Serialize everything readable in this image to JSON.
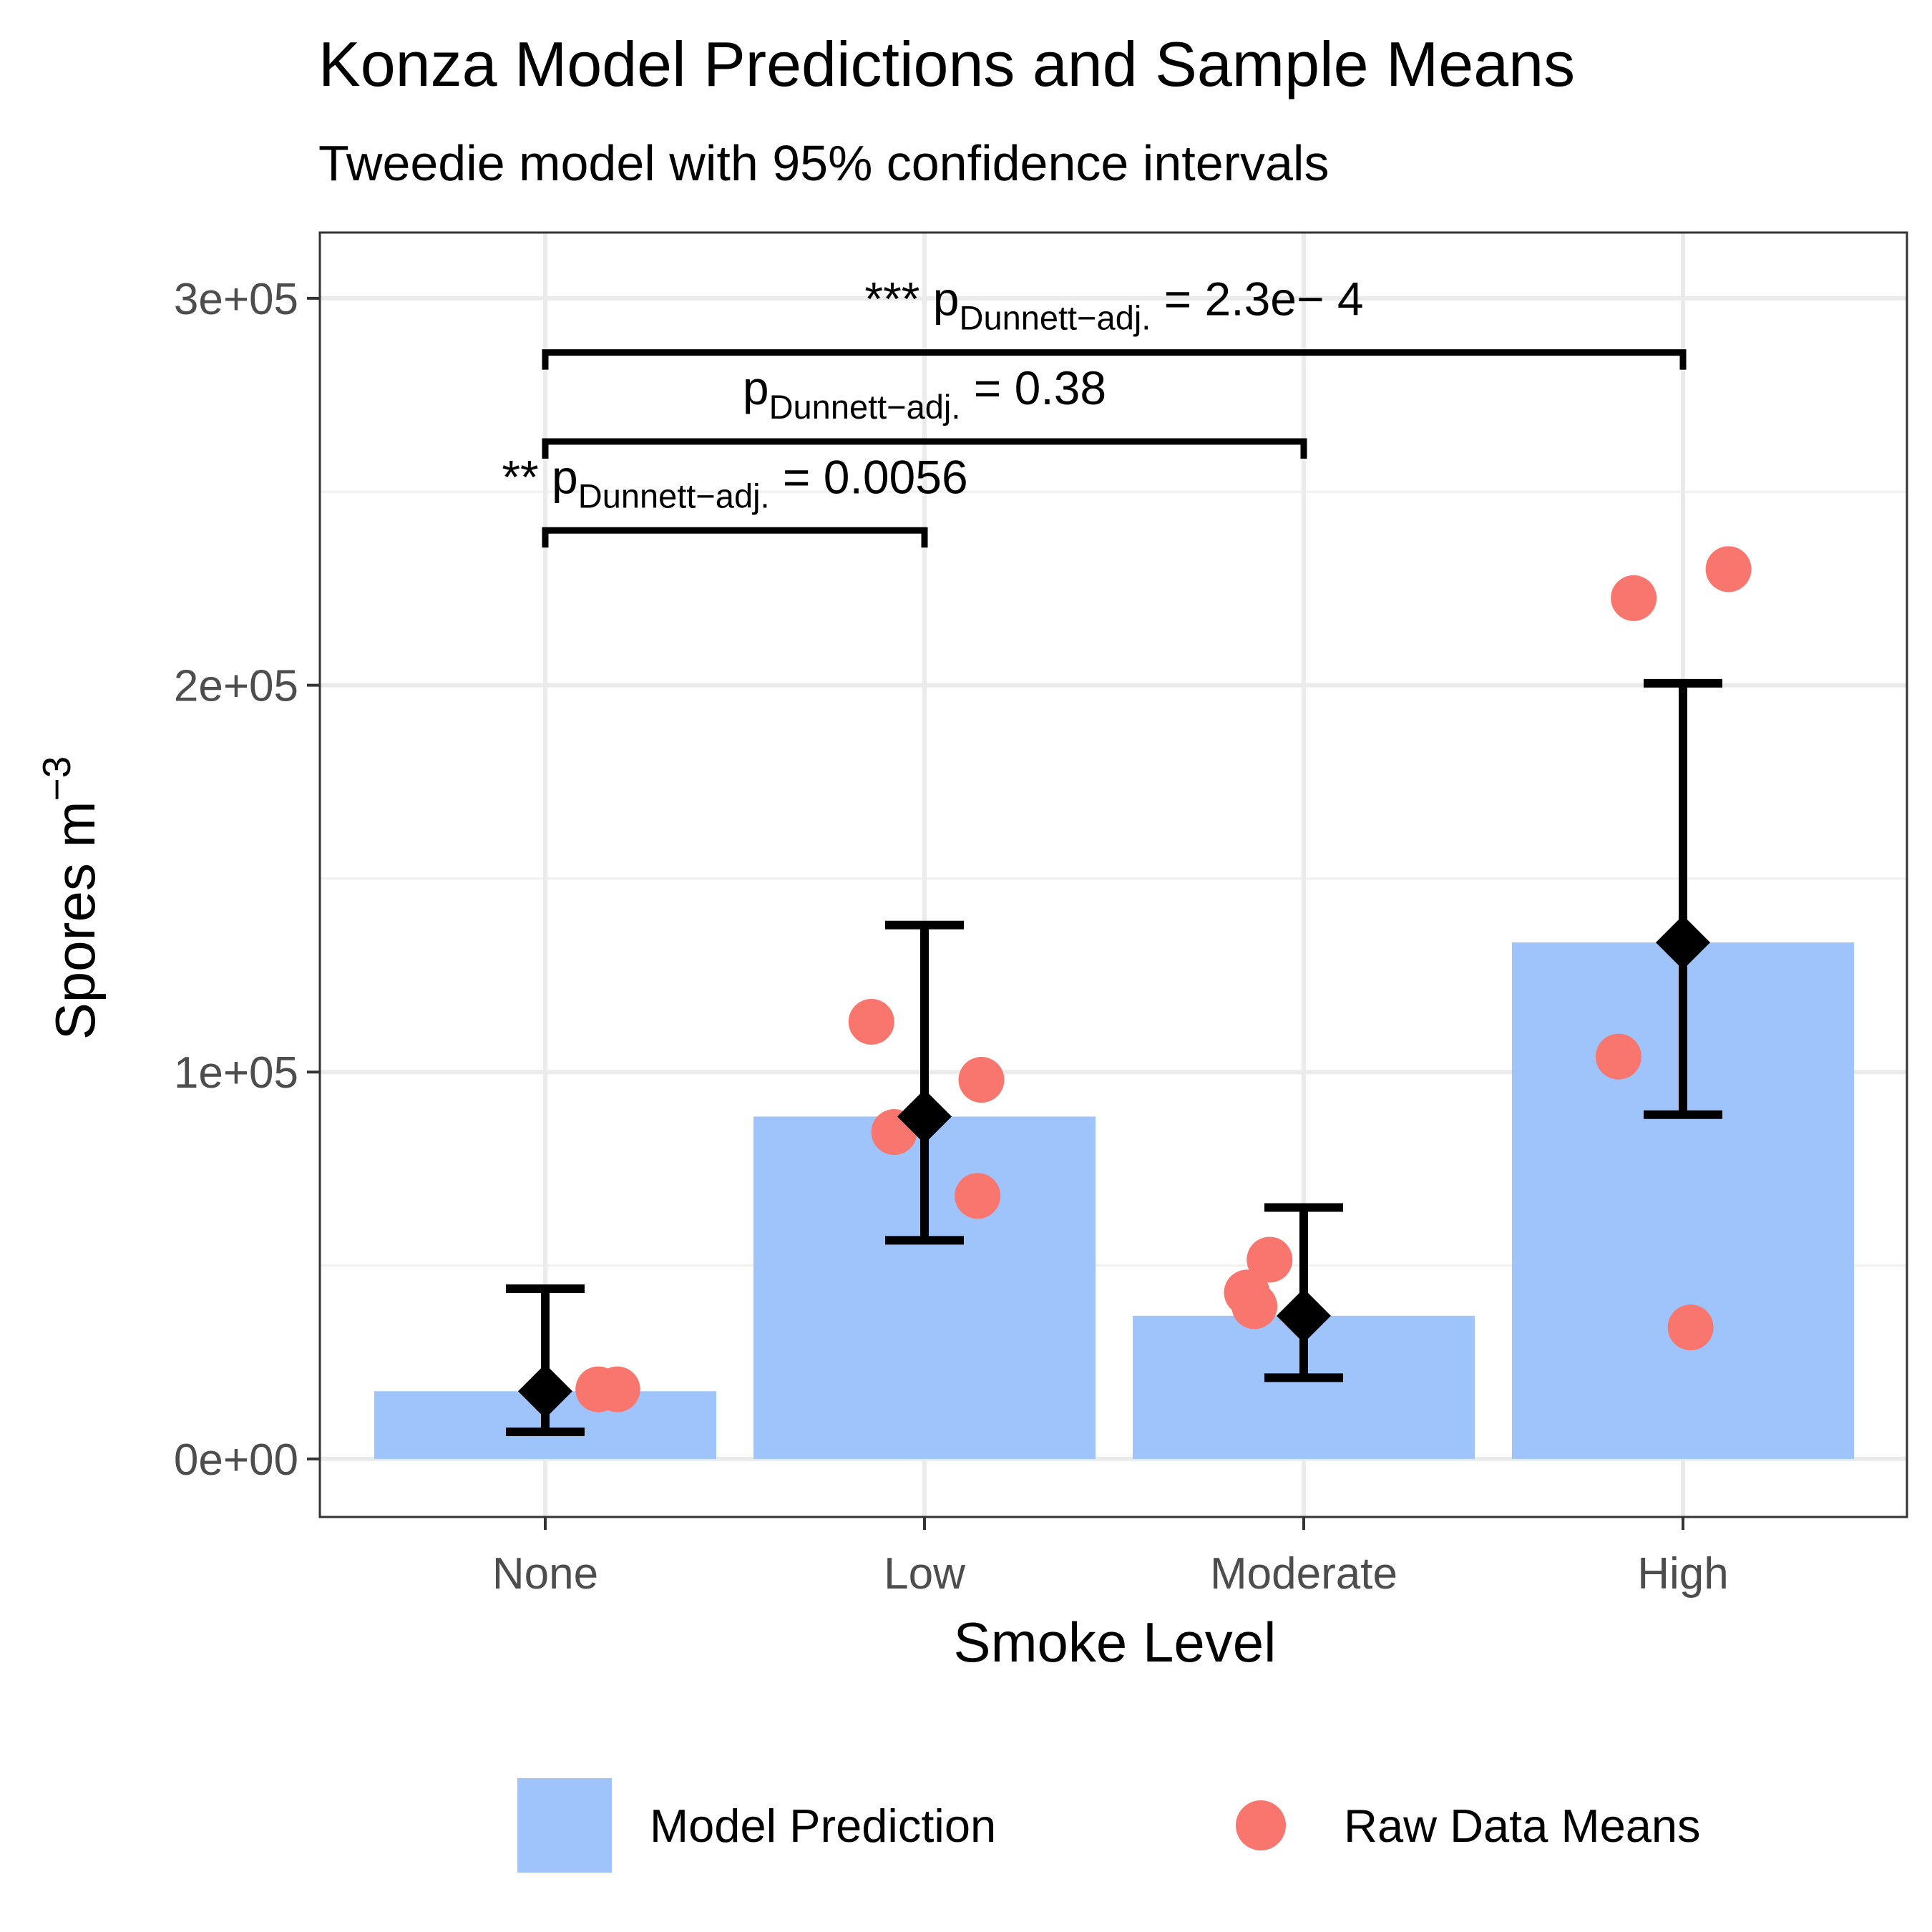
{
  "chart_data": {
    "type": "bar",
    "title": "Konza Model Predictions and Sample Means",
    "subtitle": "Tweedie model with 95% confidence intervals",
    "xlabel": "Smoke Level",
    "ylabel": {
      "base": "Spores m",
      "superscript": "−3"
    },
    "categories": [
      "None",
      "Low",
      "Moderate",
      "High"
    ],
    "ylim": [
      -15000,
      317000
    ],
    "yticks": [
      0,
      100000,
      200000,
      300000
    ],
    "ytick_labels": [
      "0e+00",
      "1e+05",
      "2e+05",
      "3e+05"
    ],
    "grid": true,
    "legend_position": "bottom",
    "series": [
      {
        "name": "Model Prediction",
        "kind": "bar",
        "color": "#9ec4fb",
        "values": [
          17500,
          88500,
          37000,
          133500
        ]
      },
      {
        "name": "Raw Data Means",
        "kind": "scatter",
        "color": "#f8766d",
        "points": [
          {
            "category": "None",
            "offset": 0.14,
            "y": 18000
          },
          {
            "category": "None",
            "offset": 0.19,
            "y": 18000
          },
          {
            "category": "Low",
            "offset": -0.14,
            "y": 113000
          },
          {
            "category": "Low",
            "offset": -0.08,
            "y": 84500
          },
          {
            "category": "Low",
            "offset": 0.15,
            "y": 98000
          },
          {
            "category": "Low",
            "offset": 0.14,
            "y": 68000
          },
          {
            "category": "Moderate",
            "offset": -0.15,
            "y": 43000
          },
          {
            "category": "Moderate",
            "offset": -0.13,
            "y": 39500
          },
          {
            "category": "Moderate",
            "offset": -0.09,
            "y": 51500
          },
          {
            "category": "High",
            "offset": -0.17,
            "y": 104000
          },
          {
            "category": "High",
            "offset": -0.13,
            "y": 222500
          },
          {
            "category": "High",
            "offset": 0.02,
            "y": 34000
          },
          {
            "category": "High",
            "offset": 0.12,
            "y": 230000
          }
        ]
      },
      {
        "kind": "point-errorbar",
        "color": "#000000",
        "estimate": [
          17500,
          88500,
          37000,
          133500
        ],
        "lower": [
          7000,
          56500,
          21000,
          89000
        ],
        "upper": [
          44000,
          138000,
          65000,
          200500
        ]
      }
    ],
    "brackets": [
      {
        "from": "None",
        "to": "Low",
        "y": 240000,
        "stars": "**",
        "p_label": "p",
        "p_sub": "Dunnett−adj.",
        "p_value": " = 0.0056"
      },
      {
        "from": "None",
        "to": "Moderate",
        "y": 263000,
        "stars": "",
        "p_label": "p",
        "p_sub": "Dunnett−adj.",
        "p_value": " = 0.38"
      },
      {
        "from": "None",
        "to": "High",
        "y": 286000,
        "stars": "***",
        "p_label": "p",
        "p_sub": "Dunnett−adj.",
        "p_value": " = 2.3e− 4"
      }
    ]
  }
}
